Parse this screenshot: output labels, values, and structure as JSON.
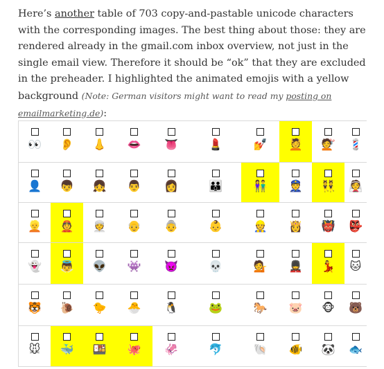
{
  "intro": {
    "before_link": "Here’s ",
    "link_text": "another",
    "after_link": " table of 703 copy-and-pastable unicode characters with the corresponding images. The best thing about those: they are rendered already in the gmail.com inbox overview, not just in the single email view. Therefore it should be “ok” that they are excluded in the preheader. I highlighted the animated emojis with a yellow background ",
    "note_before": "(Note: German visitors might want to read my ",
    "note_link": "posting on emailmarketing.de",
    "note_after": ")",
    "trailing": ":"
  },
  "table": {
    "rows": [
      {
        "cells": [
          {
            "icon": "eyes-icon",
            "glyph": "👀",
            "hl": false
          },
          {
            "icon": "ear-icon",
            "glyph": "👂",
            "hl": false
          },
          {
            "icon": "nose-icon",
            "glyph": "👃",
            "hl": false
          },
          {
            "icon": "mouth-icon",
            "glyph": "👄",
            "hl": false
          },
          {
            "icon": "tongue-icon",
            "glyph": "👅",
            "hl": false
          },
          {
            "icon": "lipstick-icon",
            "glyph": "💄",
            "hl": false
          },
          {
            "icon": "nail-polish-icon",
            "glyph": "💅",
            "hl": false
          },
          {
            "icon": "spa-icon",
            "glyph": "💆",
            "hl": true
          },
          {
            "icon": "haircut-icon",
            "glyph": "💇",
            "hl": false
          },
          {
            "icon": "barber-icon",
            "glyph": "💈",
            "hl": false
          }
        ]
      },
      {
        "cells": [
          {
            "icon": "bust-silhouette-icon",
            "glyph": "👤",
            "hl": false
          },
          {
            "icon": "boy-icon",
            "glyph": "👦",
            "hl": false
          },
          {
            "icon": "girl-icon",
            "glyph": "👧",
            "hl": false
          },
          {
            "icon": "man-icon",
            "glyph": "👨",
            "hl": false
          },
          {
            "icon": "woman-icon",
            "glyph": "👩",
            "hl": false
          },
          {
            "icon": "family-icon",
            "glyph": "👪",
            "hl": false
          },
          {
            "icon": "couple-icon",
            "glyph": "👫",
            "hl": true
          },
          {
            "icon": "police-officer-icon",
            "glyph": "👮",
            "hl": false
          },
          {
            "icon": "bunny-ears-icon",
            "glyph": "👯",
            "hl": true
          },
          {
            "icon": "bride-icon",
            "glyph": "👰",
            "hl": false
          }
        ]
      },
      {
        "cells": [
          {
            "icon": "blond-person-icon",
            "glyph": "👱",
            "hl": false
          },
          {
            "icon": "guapimao-icon",
            "glyph": "👲",
            "hl": true
          },
          {
            "icon": "turban-icon",
            "glyph": "👳",
            "hl": false
          },
          {
            "icon": "old-man-icon",
            "glyph": "👴",
            "hl": false
          },
          {
            "icon": "old-woman-icon",
            "glyph": "👵",
            "hl": false
          },
          {
            "icon": "baby-icon",
            "glyph": "👶",
            "hl": false
          },
          {
            "icon": "construction-worker-icon",
            "glyph": "👷",
            "hl": false
          },
          {
            "icon": "princess-icon",
            "glyph": "👸",
            "hl": false
          },
          {
            "icon": "ogre-icon",
            "glyph": "👹",
            "hl": false
          },
          {
            "icon": "goblin-icon",
            "glyph": "👺",
            "hl": false
          }
        ]
      },
      {
        "cells": [
          {
            "icon": "ghost-icon",
            "glyph": "👻",
            "hl": false
          },
          {
            "icon": "angel-icon",
            "glyph": "👼",
            "hl": true
          },
          {
            "icon": "alien-icon",
            "glyph": "👽",
            "hl": false
          },
          {
            "icon": "alien-monster-icon",
            "glyph": "👾",
            "hl": false
          },
          {
            "icon": "imp-icon",
            "glyph": "👿",
            "hl": false
          },
          {
            "icon": "skull-icon",
            "glyph": "💀",
            "hl": false
          },
          {
            "icon": "info-desk-person-icon",
            "glyph": "💁",
            "hl": false
          },
          {
            "icon": "guard-icon",
            "glyph": "💂",
            "hl": false
          },
          {
            "icon": "dancer-icon",
            "glyph": "💃",
            "hl": true
          },
          {
            "icon": "cat-face-icon",
            "glyph": "🐱",
            "hl": false
          }
        ]
      },
      {
        "cells": [
          {
            "icon": "tiger-face-icon",
            "glyph": "🐯",
            "hl": false
          },
          {
            "icon": "snail-icon",
            "glyph": "🐌",
            "hl": false
          },
          {
            "icon": "chick-icon",
            "glyph": "🐤",
            "hl": false
          },
          {
            "icon": "hatching-chick-icon",
            "glyph": "🐣",
            "hl": false
          },
          {
            "icon": "penguin-icon",
            "glyph": "🐧",
            "hl": false
          },
          {
            "icon": "frog-icon",
            "glyph": "🐸",
            "hl": false
          },
          {
            "icon": "horse-icon",
            "glyph": "🐎",
            "hl": false
          },
          {
            "icon": "pig-face-icon",
            "glyph": "🐷",
            "hl": false
          },
          {
            "icon": "monkey-face-icon",
            "glyph": "🐵",
            "hl": false
          },
          {
            "icon": "bear-icon",
            "glyph": "🐻",
            "hl": false
          }
        ]
      },
      {
        "cells": [
          {
            "icon": "mouse-face-icon",
            "glyph": "🐭",
            "hl": false
          },
          {
            "icon": "whale-icon",
            "glyph": "🐳",
            "hl": true
          },
          {
            "icon": "ramen-bowl-icon",
            "glyph": "🍱",
            "hl": true
          },
          {
            "icon": "octopus-icon",
            "glyph": "🐙",
            "hl": true
          },
          {
            "icon": "squid-icon",
            "glyph": "🦑",
            "hl": false
          },
          {
            "icon": "dolphin-icon",
            "glyph": "🐬",
            "hl": false
          },
          {
            "icon": "shell-icon",
            "glyph": "🐚",
            "hl": false
          },
          {
            "icon": "tropical-fish-icon",
            "glyph": "🐠",
            "hl": false
          },
          {
            "icon": "panda-icon",
            "glyph": "🐼",
            "hl": false
          },
          {
            "icon": "fish-bones-icon",
            "glyph": "🐟",
            "hl": false
          }
        ]
      }
    ]
  }
}
